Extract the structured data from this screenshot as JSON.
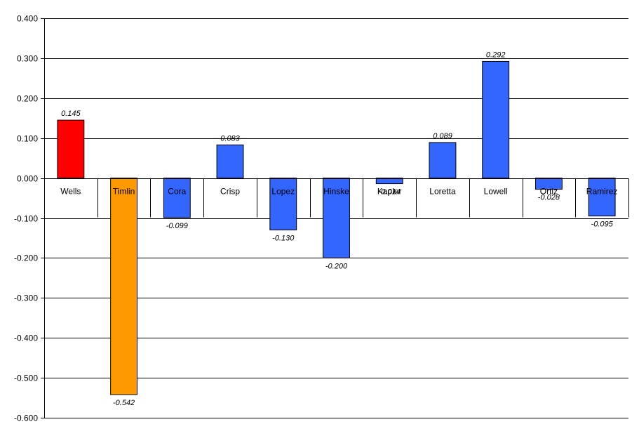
{
  "chart_data": {
    "type": "bar",
    "title": "",
    "xlabel": "",
    "ylabel": "",
    "categories": [
      "Wells",
      "Timlin",
      "Cora",
      "Crisp",
      "Lopez",
      "Hinske",
      "Kapler",
      "Loretta",
      "Lowell",
      "Ortiz",
      "Ramirez"
    ],
    "values": [
      0.145,
      -0.542,
      -0.099,
      0.083,
      -0.13,
      -0.2,
      -0.014,
      0.089,
      0.292,
      -0.028,
      -0.095
    ],
    "data_labels": [
      "0.145",
      "-0.542",
      "-0.099",
      "0.083",
      "-0.130",
      "-0.200",
      "-0.014",
      "0.089",
      "0.292",
      "-0.028",
      "-0.095"
    ],
    "bar_colors": [
      "#ff0000",
      "#ff9900",
      "#3366ff",
      "#3366ff",
      "#3366ff",
      "#3366ff",
      "#3366ff",
      "#3366ff",
      "#3366ff",
      "#3366ff",
      "#3366ff"
    ],
    "ylim": [
      -0.6,
      0.4
    ],
    "yticks": [
      0.4,
      0.3,
      0.2,
      0.1,
      0.0,
      -0.1,
      -0.2,
      -0.3,
      -0.4,
      -0.5,
      -0.6
    ],
    "ytick_labels": [
      "0.400",
      "0.300",
      "0.200",
      "0.100",
      "0.000",
      "-0.100",
      "-0.200",
      "-0.300",
      "-0.400",
      "-0.500",
      "-0.600"
    ],
    "grid": true,
    "legend": "none"
  }
}
